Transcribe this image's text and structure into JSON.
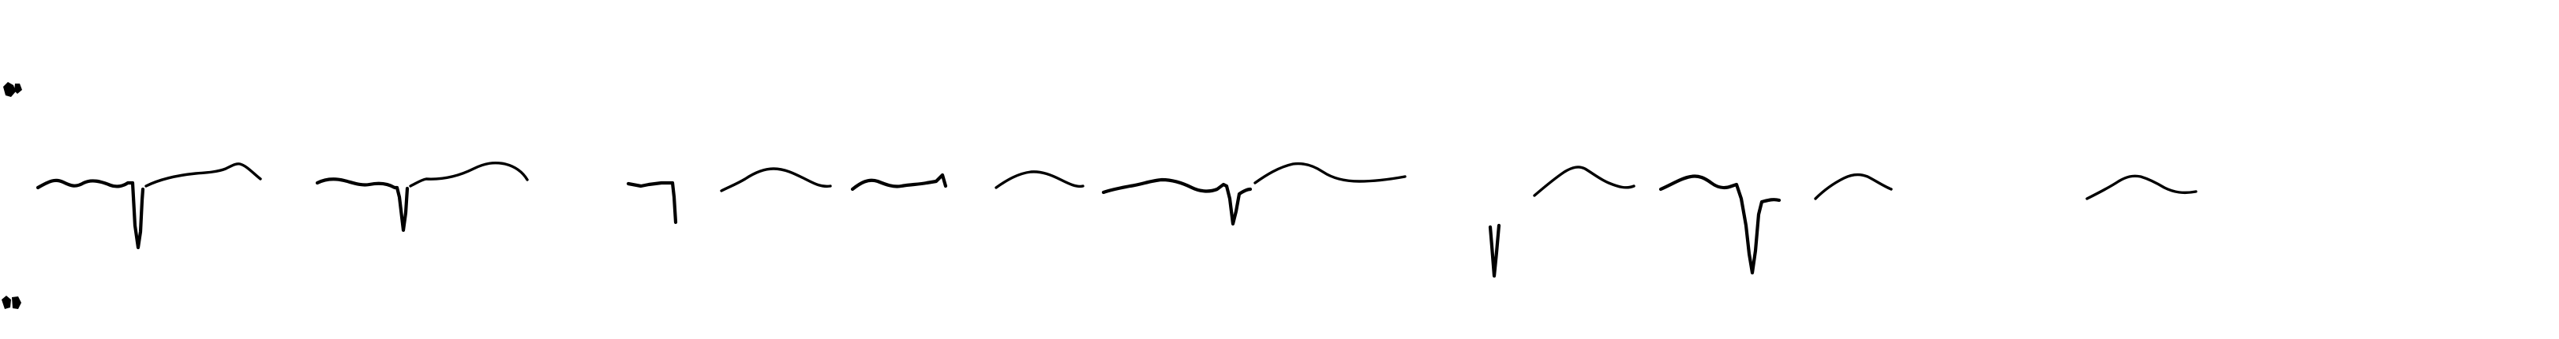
{
  "image": {
    "background_color": "#ffffff",
    "ink_color": "#000000"
  },
  "traces": {
    "description_icon": "ecg-waveform-fragments",
    "segment_count": 16
  },
  "marks": {
    "top_left": "smudge-mark-icon",
    "bottom_left": "smudge-mark-icon"
  }
}
